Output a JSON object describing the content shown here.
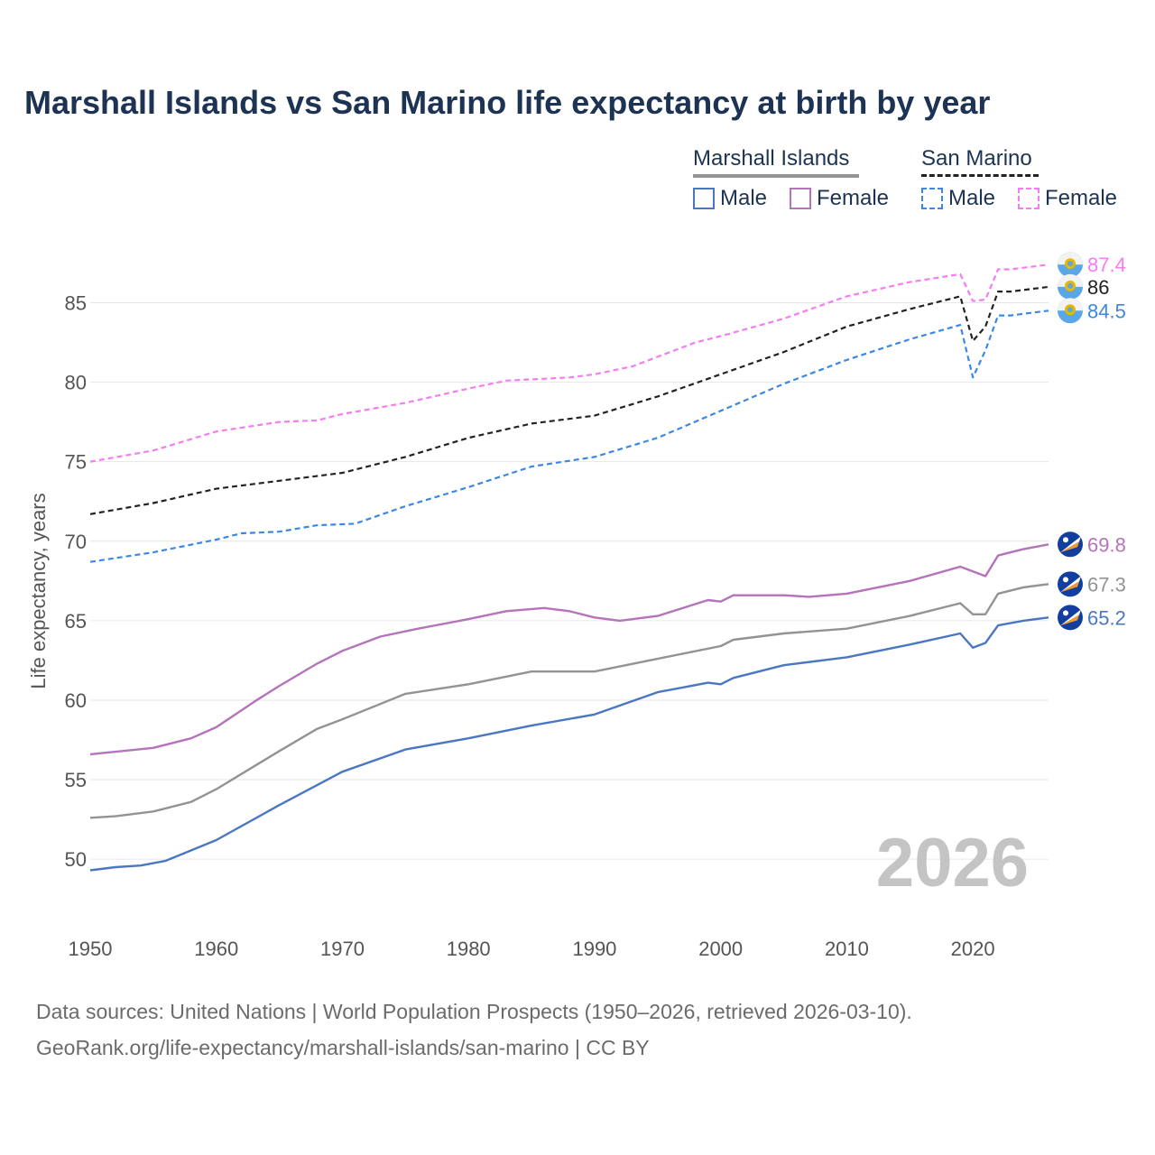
{
  "title": "Marshall Islands vs San Marino life expectancy at birth by year",
  "legend": {
    "groups": [
      {
        "name": "Marshall Islands",
        "items": [
          {
            "label": "Male",
            "color": "#4a77c2",
            "style": "solid"
          },
          {
            "label": "Female",
            "color": "#b573b9",
            "style": "solid"
          }
        ]
      },
      {
        "name": "San Marino",
        "items": [
          {
            "label": "Male",
            "color": "#3b87e6",
            "style": "dashed"
          },
          {
            "label": "Female",
            "color": "#f57cf2",
            "style": "dashed"
          }
        ]
      }
    ]
  },
  "year_watermark": "2026",
  "footer": {
    "line1": "Data sources: United Nations | World Population Prospects (1950–2026, retrieved 2026-03-10).",
    "line2": "GeoRank.org/life-expectancy/marshall-islands/san-marino | CC BY"
  },
  "chart_data": {
    "type": "line",
    "ylabel": "Life expectancy, years",
    "xlabel": "",
    "xlim": [
      1950,
      2026
    ],
    "ylim": [
      47,
      89
    ],
    "x_ticks": [
      1950,
      1960,
      1970,
      1980,
      1990,
      2000,
      2010,
      2020
    ],
    "y_ticks": [
      50,
      55,
      60,
      65,
      70,
      75,
      80,
      85
    ],
    "grid": true,
    "series": [
      {
        "name": "San Marino Female",
        "country": "San Marino",
        "color": "#f57cf2",
        "dash": true,
        "end_label": "87.4",
        "points": [
          [
            1950,
            75.0
          ],
          [
            1955,
            75.7
          ],
          [
            1960,
            76.9
          ],
          [
            1965,
            77.5
          ],
          [
            1968,
            77.6
          ],
          [
            1970,
            78.0
          ],
          [
            1975,
            78.7
          ],
          [
            1980,
            79.6
          ],
          [
            1983,
            80.1
          ],
          [
            1988,
            80.3
          ],
          [
            1990,
            80.5
          ],
          [
            1993,
            81.0
          ],
          [
            1995,
            81.6
          ],
          [
            1998,
            82.5
          ],
          [
            2000,
            82.9
          ],
          [
            2005,
            84.0
          ],
          [
            2010,
            85.4
          ],
          [
            2015,
            86.3
          ],
          [
            2019,
            86.8
          ],
          [
            2020,
            85.1
          ],
          [
            2021,
            85.2
          ],
          [
            2022,
            87.1
          ],
          [
            2023,
            87.1
          ],
          [
            2026,
            87.4
          ]
        ]
      },
      {
        "name": "San Marino Total",
        "country": "San Marino",
        "color": "#222222",
        "dash": true,
        "end_label": "86",
        "points": [
          [
            1950,
            71.7
          ],
          [
            1955,
            72.4
          ],
          [
            1960,
            73.3
          ],
          [
            1965,
            73.8
          ],
          [
            1970,
            74.3
          ],
          [
            1975,
            75.3
          ],
          [
            1980,
            76.5
          ],
          [
            1985,
            77.4
          ],
          [
            1990,
            77.9
          ],
          [
            1995,
            79.1
          ],
          [
            2000,
            80.5
          ],
          [
            2005,
            81.9
          ],
          [
            2010,
            83.5
          ],
          [
            2015,
            84.6
          ],
          [
            2019,
            85.4
          ],
          [
            2020,
            82.6
          ],
          [
            2021,
            83.5
          ],
          [
            2022,
            85.7
          ],
          [
            2023,
            85.7
          ],
          [
            2026,
            86.0
          ]
        ]
      },
      {
        "name": "San Marino Male",
        "country": "San Marino",
        "color": "#3b87e6",
        "dash": true,
        "end_label": "84.5",
        "points": [
          [
            1950,
            68.7
          ],
          [
            1955,
            69.3
          ],
          [
            1960,
            70.1
          ],
          [
            1962,
            70.5
          ],
          [
            1965,
            70.6
          ],
          [
            1968,
            71.0
          ],
          [
            1971,
            71.1
          ],
          [
            1975,
            72.2
          ],
          [
            1980,
            73.4
          ],
          [
            1985,
            74.7
          ],
          [
            1990,
            75.3
          ],
          [
            1995,
            76.5
          ],
          [
            2000,
            78.2
          ],
          [
            2005,
            79.9
          ],
          [
            2010,
            81.4
          ],
          [
            2015,
            82.7
          ],
          [
            2019,
            83.6
          ],
          [
            2020,
            80.3
          ],
          [
            2021,
            82.0
          ],
          [
            2022,
            84.2
          ],
          [
            2023,
            84.2
          ],
          [
            2026,
            84.5
          ]
        ]
      },
      {
        "name": "Marshall Islands Female",
        "country": "Marshall Islands",
        "color": "#b573b9",
        "dash": false,
        "end_label": "69.8",
        "points": [
          [
            1950,
            56.6
          ],
          [
            1955,
            57.0
          ],
          [
            1958,
            57.6
          ],
          [
            1960,
            58.3
          ],
          [
            1963,
            59.9
          ],
          [
            1965,
            60.9
          ],
          [
            1968,
            62.3
          ],
          [
            1970,
            63.1
          ],
          [
            1973,
            64.0
          ],
          [
            1976,
            64.5
          ],
          [
            1980,
            65.1
          ],
          [
            1983,
            65.6
          ],
          [
            1986,
            65.8
          ],
          [
            1988,
            65.6
          ],
          [
            1990,
            65.2
          ],
          [
            1992,
            65.0
          ],
          [
            1995,
            65.3
          ],
          [
            1999,
            66.3
          ],
          [
            2000,
            66.2
          ],
          [
            2001,
            66.6
          ],
          [
            2005,
            66.6
          ],
          [
            2007,
            66.5
          ],
          [
            2010,
            66.7
          ],
          [
            2015,
            67.5
          ],
          [
            2019,
            68.4
          ],
          [
            2021,
            67.8
          ],
          [
            2022,
            69.1
          ],
          [
            2024,
            69.5
          ],
          [
            2026,
            69.8
          ]
        ]
      },
      {
        "name": "Marshall Islands Total",
        "country": "Marshall Islands",
        "color": "#939393",
        "dash": false,
        "end_label": "67.3",
        "points": [
          [
            1950,
            52.6
          ],
          [
            1952,
            52.7
          ],
          [
            1955,
            53.0
          ],
          [
            1958,
            53.6
          ],
          [
            1960,
            54.4
          ],
          [
            1965,
            56.8
          ],
          [
            1968,
            58.2
          ],
          [
            1970,
            58.8
          ],
          [
            1975,
            60.4
          ],
          [
            1980,
            61.0
          ],
          [
            1985,
            61.8
          ],
          [
            1990,
            61.8
          ],
          [
            1995,
            62.6
          ],
          [
            2000,
            63.4
          ],
          [
            2001,
            63.8
          ],
          [
            2005,
            64.2
          ],
          [
            2010,
            64.5
          ],
          [
            2015,
            65.3
          ],
          [
            2019,
            66.1
          ],
          [
            2020,
            65.4
          ],
          [
            2021,
            65.4
          ],
          [
            2022,
            66.7
          ],
          [
            2024,
            67.1
          ],
          [
            2026,
            67.3
          ]
        ]
      },
      {
        "name": "Marshall Islands Male",
        "country": "Marshall Islands",
        "color": "#4a77c2",
        "dash": false,
        "end_label": "65.2",
        "points": [
          [
            1950,
            49.3
          ],
          [
            1952,
            49.5
          ],
          [
            1954,
            49.6
          ],
          [
            1956,
            49.9
          ],
          [
            1960,
            51.2
          ],
          [
            1965,
            53.4
          ],
          [
            1970,
            55.5
          ],
          [
            1975,
            56.9
          ],
          [
            1980,
            57.6
          ],
          [
            1985,
            58.4
          ],
          [
            1990,
            59.1
          ],
          [
            1995,
            60.5
          ],
          [
            1999,
            61.1
          ],
          [
            2000,
            61.0
          ],
          [
            2001,
            61.4
          ],
          [
            2005,
            62.2
          ],
          [
            2010,
            62.7
          ],
          [
            2015,
            63.5
          ],
          [
            2019,
            64.2
          ],
          [
            2020,
            63.3
          ],
          [
            2021,
            63.6
          ],
          [
            2022,
            64.7
          ],
          [
            2024,
            65.0
          ],
          [
            2026,
            65.2
          ]
        ]
      }
    ]
  }
}
